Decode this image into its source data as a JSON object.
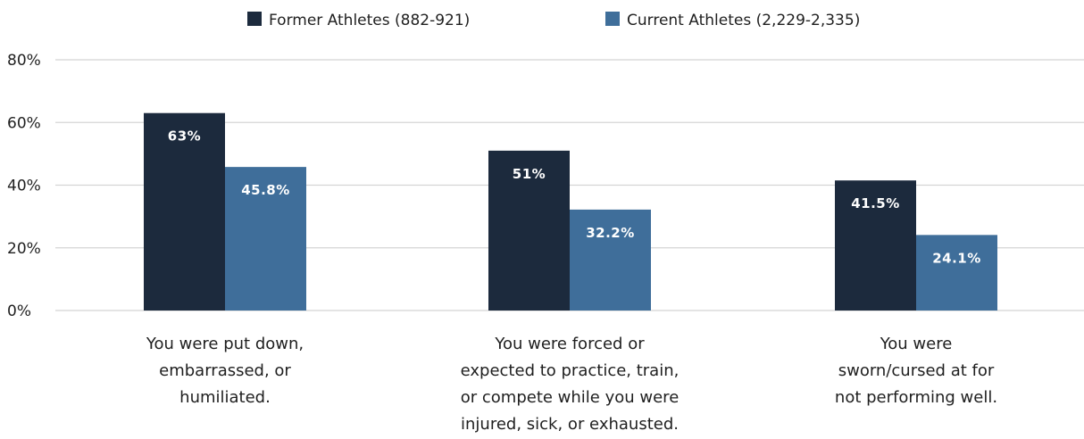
{
  "chart_data": {
    "type": "bar",
    "categories": [
      [
        "You were put down,",
        "embarrassed, or",
        "humiliated."
      ],
      [
        "You were forced or",
        "expected to practice, train,",
        "or compete while you were",
        "injured, sick, or exhausted."
      ],
      [
        "You were",
        "sworn/cursed at for",
        "not performing well."
      ]
    ],
    "series": [
      {
        "name": "Former Athletes (882-921)",
        "values": [
          63,
          51,
          41.5
        ],
        "labels": [
          "63%",
          "51%",
          "41.5%"
        ],
        "color": "#1c2a3d"
      },
      {
        "name": "Current Athletes (2,229-2,335)",
        "values": [
          45.8,
          32.2,
          24.1
        ],
        "labels": [
          "45.8%",
          "32.2%",
          "24.1%"
        ],
        "color": "#3f6e9a"
      }
    ],
    "yticks": [
      "0%",
      "20%",
      "40%",
      "60%",
      "80%"
    ],
    "ytick_values": [
      0,
      20,
      40,
      60,
      80
    ],
    "ylim": [
      0,
      80
    ],
    "grid": true,
    "legend_position": "top-center",
    "title": "",
    "xlabel": "",
    "ylabel": ""
  }
}
